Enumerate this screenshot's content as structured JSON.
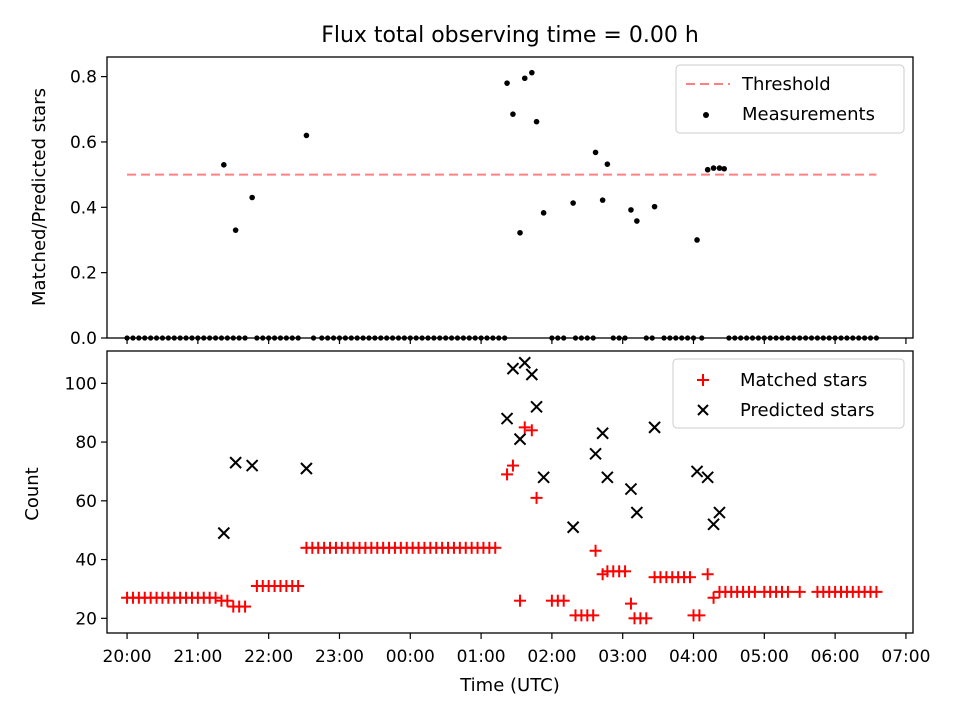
{
  "title": "Flux total observing time = 0.00 h",
  "chart_data": [
    {
      "type": "scatter",
      "ylabel": "Matched/Predicted stars",
      "xlabel": "",
      "xlim": [
        "19:43",
        "07:06"
      ],
      "ylim": [
        0,
        0.86
      ],
      "yticks": [
        "0.0",
        "0.2",
        "0.4",
        "0.6",
        "0.8"
      ],
      "legend_position": "top-right",
      "threshold": {
        "name": "Threshold",
        "value": 0.5,
        "x_range": [
          "20:00",
          "06:35"
        ],
        "color": "#ff8080"
      },
      "measurements": {
        "name": "Measurements",
        "color": "#000000",
        "points": [
          [
            "21:22",
            0.53
          ],
          [
            "21:32",
            0.33
          ],
          [
            "21:46",
            0.43
          ],
          [
            "22:32",
            0.62
          ],
          [
            "01:22",
            0.78
          ],
          [
            "01:27",
            0.685
          ],
          [
            "01:37",
            0.795
          ],
          [
            "01:43",
            0.812
          ],
          [
            "01:47",
            0.662
          ],
          [
            "01:53",
            0.383
          ],
          [
            "01:33",
            0.322
          ],
          [
            "02:18",
            0.413
          ],
          [
            "02:37",
            0.568
          ],
          [
            "02:43",
            0.422
          ],
          [
            "02:47",
            0.532
          ],
          [
            "03:07",
            0.392
          ],
          [
            "03:12",
            0.358
          ],
          [
            "03:27",
            0.402
          ],
          [
            "04:03",
            0.3
          ],
          [
            "04:12",
            0.515
          ],
          [
            "04:17",
            0.52
          ],
          [
            "04:22",
            0.52
          ],
          [
            "04:26",
            0.518
          ]
        ],
        "zero_points": [
          "20:00",
          "20:05",
          "20:10",
          "20:15",
          "20:20",
          "20:25",
          "20:30",
          "20:35",
          "20:40",
          "20:45",
          "20:50",
          "20:55",
          "21:00",
          "21:05",
          "21:10",
          "21:15",
          "21:20",
          "21:25",
          "21:30",
          "21:35",
          "21:40",
          "21:50",
          "21:55",
          "22:00",
          "22:05",
          "22:10",
          "22:15",
          "22:20",
          "22:25",
          "22:38",
          "22:45",
          "22:50",
          "22:55",
          "23:00",
          "23:05",
          "23:10",
          "23:15",
          "23:20",
          "23:25",
          "23:30",
          "23:35",
          "23:40",
          "23:45",
          "23:50",
          "23:55",
          "00:00",
          "00:05",
          "00:10",
          "00:15",
          "00:20",
          "00:25",
          "00:30",
          "00:35",
          "00:40",
          "00:45",
          "00:50",
          "00:55",
          "01:00",
          "01:05",
          "01:10",
          "01:15",
          "01:20",
          "02:00",
          "02:05",
          "02:10",
          "02:20",
          "02:25",
          "02:30",
          "02:35",
          "02:52",
          "02:57",
          "03:02",
          "03:20",
          "03:25",
          "03:35",
          "03:40",
          "03:45",
          "03:50",
          "03:55",
          "04:00",
          "04:07",
          "04:30",
          "04:35",
          "04:40",
          "04:45",
          "04:50",
          "04:55",
          "05:00",
          "05:05",
          "05:10",
          "05:15",
          "05:20",
          "05:25",
          "05:30",
          "05:35",
          "05:40",
          "05:45",
          "05:50",
          "05:55",
          "06:00",
          "06:05",
          "06:10",
          "06:15",
          "06:20",
          "06:25",
          "06:30",
          "06:35"
        ]
      }
    },
    {
      "type": "scatter",
      "ylabel": "Count",
      "xlabel": "Time (UTC)",
      "xlim": [
        "19:43",
        "07:06"
      ],
      "ylim": [
        15,
        111
      ],
      "yticks": [
        "20",
        "40",
        "60",
        "80",
        "100"
      ],
      "xticks": [
        "20:00",
        "21:00",
        "22:00",
        "23:00",
        "00:00",
        "01:00",
        "02:00",
        "03:00",
        "04:00",
        "05:00",
        "06:00",
        "07:00"
      ],
      "legend_position": "top-right",
      "series": [
        {
          "name": "Matched stars",
          "marker": "+",
          "color": "#ff0000",
          "runs": [
            {
              "from": "20:00",
              "to": "21:15",
              "step": 5,
              "value": 27
            },
            {
              "from": "21:20",
              "to": "21:25",
              "step": 5,
              "value": 26
            },
            {
              "from": "21:30",
              "to": "21:40",
              "step": 5,
              "value": 24
            },
            {
              "from": "21:50",
              "to": "22:25",
              "step": 5,
              "value": 31
            },
            {
              "from": "22:32",
              "to": "01:15",
              "step": 5,
              "value": 44
            },
            {
              "from": "02:00",
              "to": "02:10",
              "step": 5,
              "value": 26
            },
            {
              "from": "02:20",
              "to": "02:35",
              "step": 5,
              "value": 21
            },
            {
              "from": "02:52",
              "to": "03:02",
              "step": 5,
              "value": 36
            },
            {
              "from": "03:10",
              "to": "03:20",
              "step": 5,
              "value": 20
            },
            {
              "from": "03:27",
              "to": "03:57",
              "step": 5,
              "value": 34
            },
            {
              "from": "04:00",
              "to": "04:07",
              "step": 5,
              "value": 21
            },
            {
              "from": "04:27",
              "to": "04:55",
              "step": 5,
              "value": 29
            },
            {
              "from": "05:00",
              "to": "05:20",
              "step": 5,
              "value": 29
            },
            {
              "from": "05:30",
              "to": "05:30",
              "step": 5,
              "value": 29
            },
            {
              "from": "05:45",
              "to": "06:05",
              "step": 5,
              "value": 29
            },
            {
              "from": "06:10",
              "to": "06:35",
              "step": 5,
              "value": 29
            }
          ],
          "points": [
            [
              "01:22",
              69
            ],
            [
              "01:27",
              72
            ],
            [
              "01:33",
              26
            ],
            [
              "01:37",
              85
            ],
            [
              "01:43",
              84
            ],
            [
              "01:47",
              61
            ],
            [
              "02:37",
              43
            ],
            [
              "02:43",
              35
            ],
            [
              "02:47",
              36
            ],
            [
              "03:07",
              25
            ],
            [
              "04:12",
              35
            ],
            [
              "04:17",
              27
            ],
            [
              "04:22",
              29
            ]
          ]
        },
        {
          "name": "Predicted stars",
          "marker": "x",
          "color": "#000000",
          "points": [
            [
              "21:22",
              49
            ],
            [
              "21:32",
              73
            ],
            [
              "21:46",
              72
            ],
            [
              "22:32",
              71
            ],
            [
              "01:22",
              88
            ],
            [
              "01:27",
              105
            ],
            [
              "01:33",
              81
            ],
            [
              "01:37",
              107
            ],
            [
              "01:43",
              103
            ],
            [
              "01:47",
              92
            ],
            [
              "01:53",
              68
            ],
            [
              "02:18",
              51
            ],
            [
              "02:37",
              76
            ],
            [
              "02:43",
              83
            ],
            [
              "02:47",
              68
            ],
            [
              "03:07",
              64
            ],
            [
              "03:12",
              56
            ],
            [
              "03:27",
              85
            ],
            [
              "04:03",
              70
            ],
            [
              "04:12",
              68
            ],
            [
              "04:17",
              52
            ],
            [
              "04:22",
              56
            ]
          ]
        }
      ]
    }
  ]
}
